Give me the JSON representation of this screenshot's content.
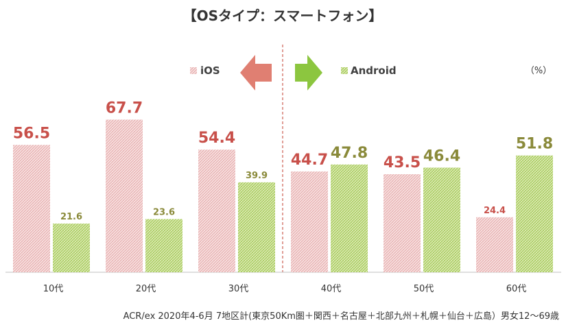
{
  "chart_data": {
    "type": "bar",
    "title": "【OSタイプ：スマートフォン】",
    "unit": "（%）",
    "categories": [
      "10代",
      "20代",
      "30代",
      "40代",
      "50代",
      "60代"
    ],
    "series": [
      {
        "name": "iOS",
        "values": [
          56.5,
          67.7,
          54.4,
          44.7,
          43.5,
          24.4
        ],
        "color": "#c8504a"
      },
      {
        "name": "Android",
        "values": [
          21.6,
          23.6,
          39.9,
          47.8,
          46.4,
          51.8
        ],
        "color": "#8a8a3a"
      }
    ],
    "ylim": [
      0,
      100
    ],
    "grid": false,
    "legend": "top",
    "source": "ACR/ex 2020年4-6月 7地区計(東京50Km圏＋関西＋名古屋＋北部九州＋札幌＋仙台＋広島）男女12～69歳"
  },
  "colors": {
    "ios_bar": "#f2c4c4",
    "android_bar": "#b5d36a",
    "ios_arrow": "#e07f72",
    "android_arrow": "#8cc63f",
    "divider": "#c0392b"
  },
  "icons": {
    "left_arrow": "left-arrow-icon",
    "right_arrow": "right-arrow-icon"
  }
}
